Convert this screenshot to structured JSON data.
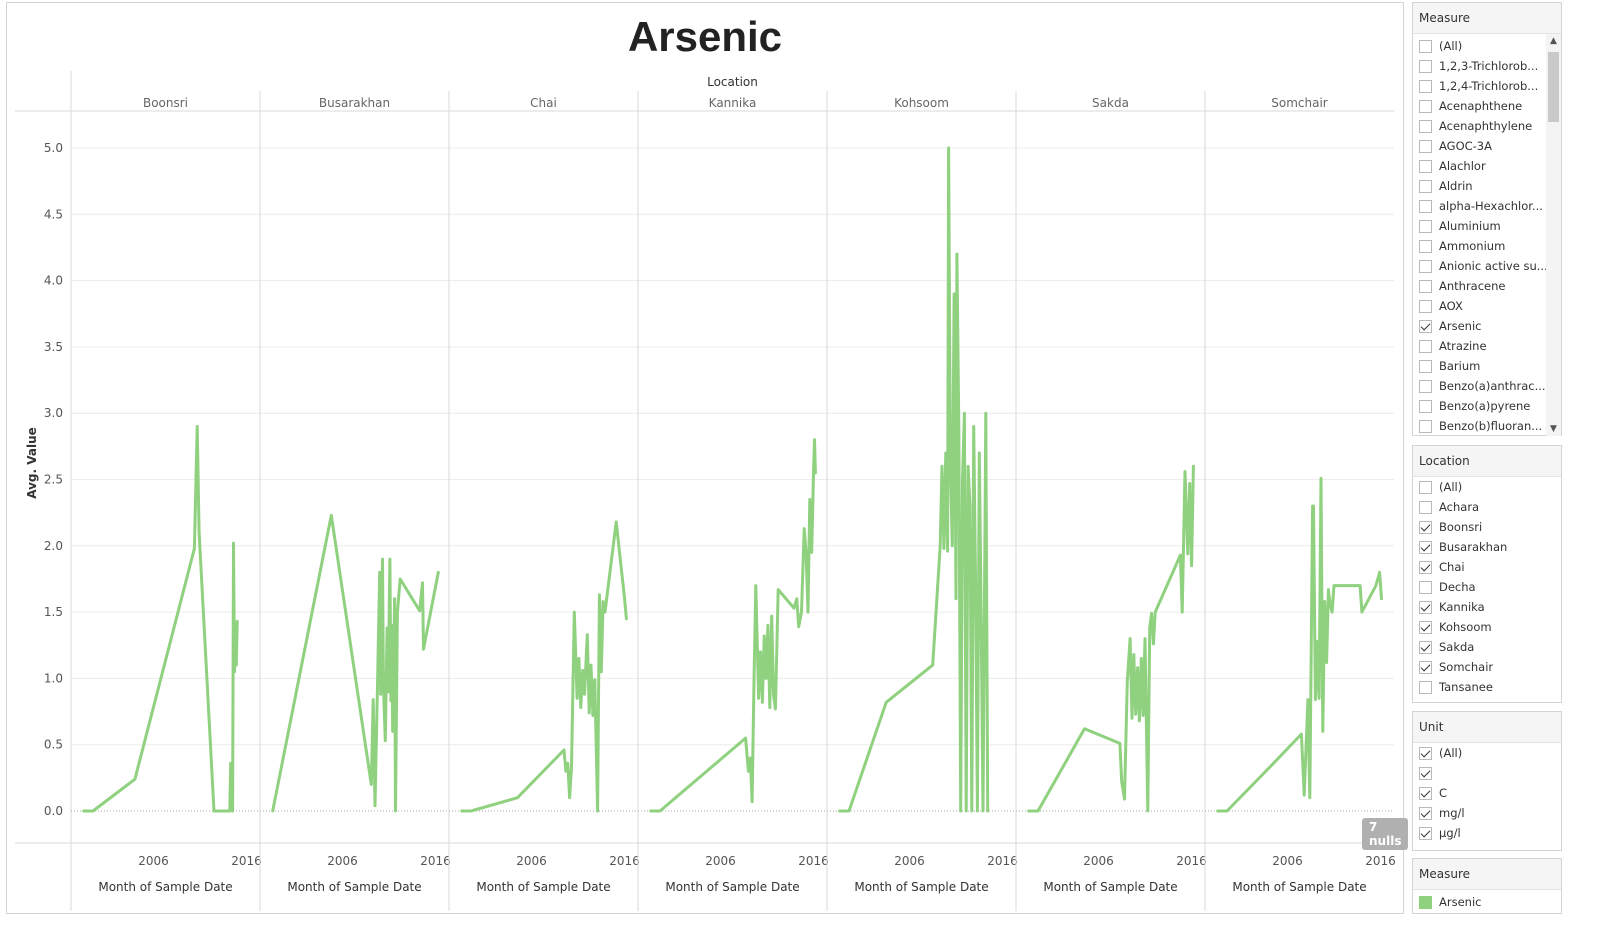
{
  "title": "Arsenic",
  "colors": {
    "line": "#8fd17f",
    "grid": "#ececec",
    "divider": "#d9d9d9",
    "baseline": "#aaaaaa"
  },
  "chart_data": {
    "type": "line",
    "title": "Arsenic",
    "column_header": "Location",
    "ylabel": "Avg. Value",
    "xlabel": "Month of Sample Date",
    "ylim": [
      0,
      5.25
    ],
    "yticks": [
      "0.0",
      "0.5",
      "1.0",
      "1.5",
      "2.0",
      "2.5",
      "3.0",
      "3.5",
      "4.0",
      "4.5",
      "5.0"
    ],
    "xlim": [
      1998,
      2016.8
    ],
    "xticks": [
      "2006",
      "2016"
    ],
    "grid": true,
    "nulls_label": "7 nulls",
    "panels": [
      {
        "name": "Boonsri",
        "points": [
          [
            1998.5,
            0
          ],
          [
            1999.5,
            0
          ],
          [
            2004,
            0.24
          ],
          [
            2010.4,
            1.98
          ],
          [
            2010.7,
            2.9
          ],
          [
            2010.9,
            2.1
          ],
          [
            2012.5,
            0
          ],
          [
            2014.2,
            0
          ],
          [
            2014.3,
            0.36
          ],
          [
            2014.5,
            0
          ],
          [
            2014.6,
            2.02
          ],
          [
            2014.7,
            1.05
          ],
          [
            2014.8,
            1.41
          ],
          [
            2014.9,
            1.1
          ],
          [
            2015,
            1.43
          ]
        ]
      },
      {
        "name": "Busarakhan",
        "points": [
          [
            1998.5,
            0
          ],
          [
            2004.8,
            2.23
          ],
          [
            2009.1,
            0.2
          ],
          [
            2009.3,
            0.84
          ],
          [
            2009.5,
            0.04
          ],
          [
            2009.8,
            1.06
          ],
          [
            2010,
            1.8
          ],
          [
            2010.1,
            0.88
          ],
          [
            2010.3,
            1.9
          ],
          [
            2010.4,
            0.95
          ],
          [
            2010.6,
            0.53
          ],
          [
            2010.8,
            1.38
          ],
          [
            2010.9,
            0.9
          ],
          [
            2011,
            1.4
          ],
          [
            2011.1,
            1.9
          ],
          [
            2011.2,
            0.83
          ],
          [
            2011.3,
            1.4
          ],
          [
            2011.4,
            0.6
          ],
          [
            2011.6,
            1.6
          ],
          [
            2011.7,
            0
          ],
          [
            2011.9,
            1.5
          ],
          [
            2012.2,
            1.75
          ],
          [
            2014.3,
            1.51
          ],
          [
            2014.6,
            1.72
          ],
          [
            2014.7,
            1.22
          ],
          [
            2016.3,
            1.8
          ]
        ]
      },
      {
        "name": "Chai",
        "points": [
          [
            1998.5,
            0
          ],
          [
            1999.5,
            0
          ],
          [
            2004.5,
            0.1
          ],
          [
            2009.5,
            0.46
          ],
          [
            2009.7,
            0.3
          ],
          [
            2009.9,
            0.36
          ],
          [
            2010.1,
            0.1
          ],
          [
            2010.3,
            0.33
          ],
          [
            2010.6,
            1.5
          ],
          [
            2010.9,
            0.85
          ],
          [
            2011.1,
            1.15
          ],
          [
            2011.3,
            0.78
          ],
          [
            2011.5,
            1.06
          ],
          [
            2011.7,
            0.88
          ],
          [
            2012,
            1.33
          ],
          [
            2012.2,
            0.74
          ],
          [
            2012.4,
            1.1
          ],
          [
            2012.6,
            0.72
          ],
          [
            2012.8,
            0.99
          ],
          [
            2013.1,
            0
          ],
          [
            2013.3,
            1.63
          ],
          [
            2013.5,
            1.05
          ],
          [
            2013.7,
            1.58
          ],
          [
            2013.9,
            1.5
          ],
          [
            2015.1,
            2.18
          ],
          [
            2016,
            1.6
          ],
          [
            2016.2,
            1.45
          ]
        ]
      },
      {
        "name": "Kannika",
        "points": [
          [
            1998.5,
            0
          ],
          [
            1999.5,
            0
          ],
          [
            2008.7,
            0.55
          ],
          [
            2009,
            0.3
          ],
          [
            2009.2,
            0.4
          ],
          [
            2009.4,
            0.07
          ],
          [
            2009.6,
            0.98
          ],
          [
            2009.8,
            1.7
          ],
          [
            2010.1,
            0.85
          ],
          [
            2010.3,
            1.2
          ],
          [
            2010.5,
            0.82
          ],
          [
            2010.7,
            1.32
          ],
          [
            2010.9,
            1.0
          ],
          [
            2011.1,
            1.4
          ],
          [
            2011.3,
            0.78
          ],
          [
            2011.5,
            1.47
          ],
          [
            2011.7,
            0.88
          ],
          [
            2011.9,
            0.77
          ],
          [
            2012.2,
            1.67
          ],
          [
            2013.9,
            1.53
          ],
          [
            2014.2,
            1.6
          ],
          [
            2014.4,
            1.39
          ],
          [
            2014.7,
            1.5
          ],
          [
            2015,
            2.13
          ],
          [
            2015.2,
            1.95
          ],
          [
            2015.4,
            1.5
          ],
          [
            2015.6,
            2.35
          ],
          [
            2015.8,
            1.95
          ],
          [
            2016,
            2.58
          ],
          [
            2016.1,
            2.8
          ],
          [
            2016.2,
            2.55
          ]
        ]
      },
      {
        "name": "Kohsoom",
        "points": [
          [
            1998.5,
            0
          ],
          [
            1999.5,
            0
          ],
          [
            2003.5,
            0.82
          ],
          [
            2008.5,
            1.1
          ],
          [
            2009.3,
            2.0
          ],
          [
            2009.5,
            2.6
          ],
          [
            2009.7,
            1.98
          ],
          [
            2009.9,
            2.7
          ],
          [
            2010.1,
            1.96
          ],
          [
            2010.2,
            5.0
          ],
          [
            2010.4,
            2.6
          ],
          [
            2010.6,
            2.0
          ],
          [
            2010.8,
            3.9
          ],
          [
            2011,
            1.6
          ],
          [
            2011.1,
            4.2
          ],
          [
            2011.3,
            2.9
          ],
          [
            2011.5,
            0
          ],
          [
            2011.7,
            2.5
          ],
          [
            2011.9,
            3.0
          ],
          [
            2012.1,
            0
          ],
          [
            2012.3,
            2.6
          ],
          [
            2012.5,
            2.3
          ],
          [
            2012.7,
            0
          ],
          [
            2012.9,
            2.9
          ],
          [
            2013.1,
            1.7
          ],
          [
            2013.3,
            0
          ],
          [
            2013.5,
            2.7
          ],
          [
            2013.7,
            1.5
          ],
          [
            2013.9,
            0
          ],
          [
            2014.2,
            3.0
          ],
          [
            2014.4,
            0
          ]
        ]
      },
      {
        "name": "Sakda",
        "points": [
          [
            1998.5,
            0
          ],
          [
            1999.5,
            0
          ],
          [
            2004.5,
            0.62
          ],
          [
            2008.3,
            0.51
          ],
          [
            2008.5,
            0.22
          ],
          [
            2008.8,
            0.09
          ],
          [
            2009.1,
            0.98
          ],
          [
            2009.4,
            1.3
          ],
          [
            2009.6,
            0.7
          ],
          [
            2009.8,
            1.18
          ],
          [
            2010,
            0.73
          ],
          [
            2010.2,
            1.08
          ],
          [
            2010.4,
            0.68
          ],
          [
            2010.6,
            1.15
          ],
          [
            2010.8,
            0.72
          ],
          [
            2011,
            1.3
          ],
          [
            2011.3,
            0
          ],
          [
            2011.5,
            1.38
          ],
          [
            2011.7,
            1.49
          ],
          [
            2011.9,
            1.26
          ],
          [
            2012.1,
            1.5
          ],
          [
            2014.8,
            1.93
          ],
          [
            2015,
            1.5
          ],
          [
            2015.3,
            2.56
          ],
          [
            2015.6,
            1.94
          ],
          [
            2015.8,
            2.47
          ],
          [
            2016,
            1.85
          ],
          [
            2016.2,
            2.6
          ]
        ]
      },
      {
        "name": "Somchair",
        "points": [
          [
            1998.5,
            0
          ],
          [
            1999.5,
            0
          ],
          [
            2004.5,
            0.36
          ],
          [
            2007.5,
            0.58
          ],
          [
            2007.8,
            0.12
          ],
          [
            2008.2,
            0.84
          ],
          [
            2008.4,
            0.1
          ],
          [
            2008.7,
            2.3
          ],
          [
            2008.8,
            2.3
          ],
          [
            2009,
            0.84
          ],
          [
            2009.2,
            1.28
          ],
          [
            2009.4,
            0.85
          ],
          [
            2009.6,
            2.51
          ],
          [
            2009.8,
            0.6
          ],
          [
            2010,
            1.58
          ],
          [
            2010.2,
            1.12
          ],
          [
            2010.4,
            1.67
          ],
          [
            2010.6,
            1.55
          ],
          [
            2010.8,
            1.5
          ],
          [
            2011,
            1.7
          ],
          [
            2013.8,
            1.7
          ],
          [
            2014,
            1.5
          ],
          [
            2015.5,
            1.7
          ],
          [
            2015.9,
            1.8
          ],
          [
            2016.1,
            1.6
          ]
        ]
      }
    ]
  },
  "filters": {
    "measure": {
      "title": "Measure",
      "items": [
        {
          "label": "(All)",
          "checked": false
        },
        {
          "label": "1,2,3-Trichlorob...",
          "checked": false
        },
        {
          "label": "1,2,4-Trichlorob...",
          "checked": false
        },
        {
          "label": "Acenaphthene",
          "checked": false
        },
        {
          "label": "Acenaphthylene",
          "checked": false
        },
        {
          "label": "AGOC-3A",
          "checked": false
        },
        {
          "label": "Alachlor",
          "checked": false
        },
        {
          "label": "Aldrin",
          "checked": false
        },
        {
          "label": "alpha-Hexachlor...",
          "checked": false
        },
        {
          "label": "Aluminium",
          "checked": false
        },
        {
          "label": "Ammonium",
          "checked": false
        },
        {
          "label": "Anionic active su...",
          "checked": false
        },
        {
          "label": "Anthracene",
          "checked": false
        },
        {
          "label": "AOX",
          "checked": false
        },
        {
          "label": "Arsenic",
          "checked": true
        },
        {
          "label": "Atrazine",
          "checked": false
        },
        {
          "label": "Barium",
          "checked": false
        },
        {
          "label": "Benzo(a)anthrac...",
          "checked": false
        },
        {
          "label": "Benzo(a)pyrene",
          "checked": false
        },
        {
          "label": "Benzo(b)fluoran...",
          "checked": false
        }
      ]
    },
    "location": {
      "title": "Location",
      "items": [
        {
          "label": "(All)",
          "checked": false
        },
        {
          "label": "Achara",
          "checked": false
        },
        {
          "label": "Boonsri",
          "checked": true
        },
        {
          "label": "Busarakhan",
          "checked": true
        },
        {
          "label": "Chai",
          "checked": true
        },
        {
          "label": "Decha",
          "checked": false
        },
        {
          "label": "Kannika",
          "checked": true
        },
        {
          "label": "Kohsoom",
          "checked": true
        },
        {
          "label": "Sakda",
          "checked": true
        },
        {
          "label": "Somchair",
          "checked": true
        },
        {
          "label": "Tansanee",
          "checked": false
        }
      ]
    },
    "unit": {
      "title": "Unit",
      "items": [
        {
          "label": "(All)",
          "checked": true
        },
        {
          "label": "",
          "checked": true
        },
        {
          "label": "C",
          "checked": true
        },
        {
          "label": "mg/l",
          "checked": true
        },
        {
          "label": "µg/l",
          "checked": true
        }
      ]
    }
  },
  "legend": {
    "title": "Measure",
    "item": "Arsenic"
  }
}
